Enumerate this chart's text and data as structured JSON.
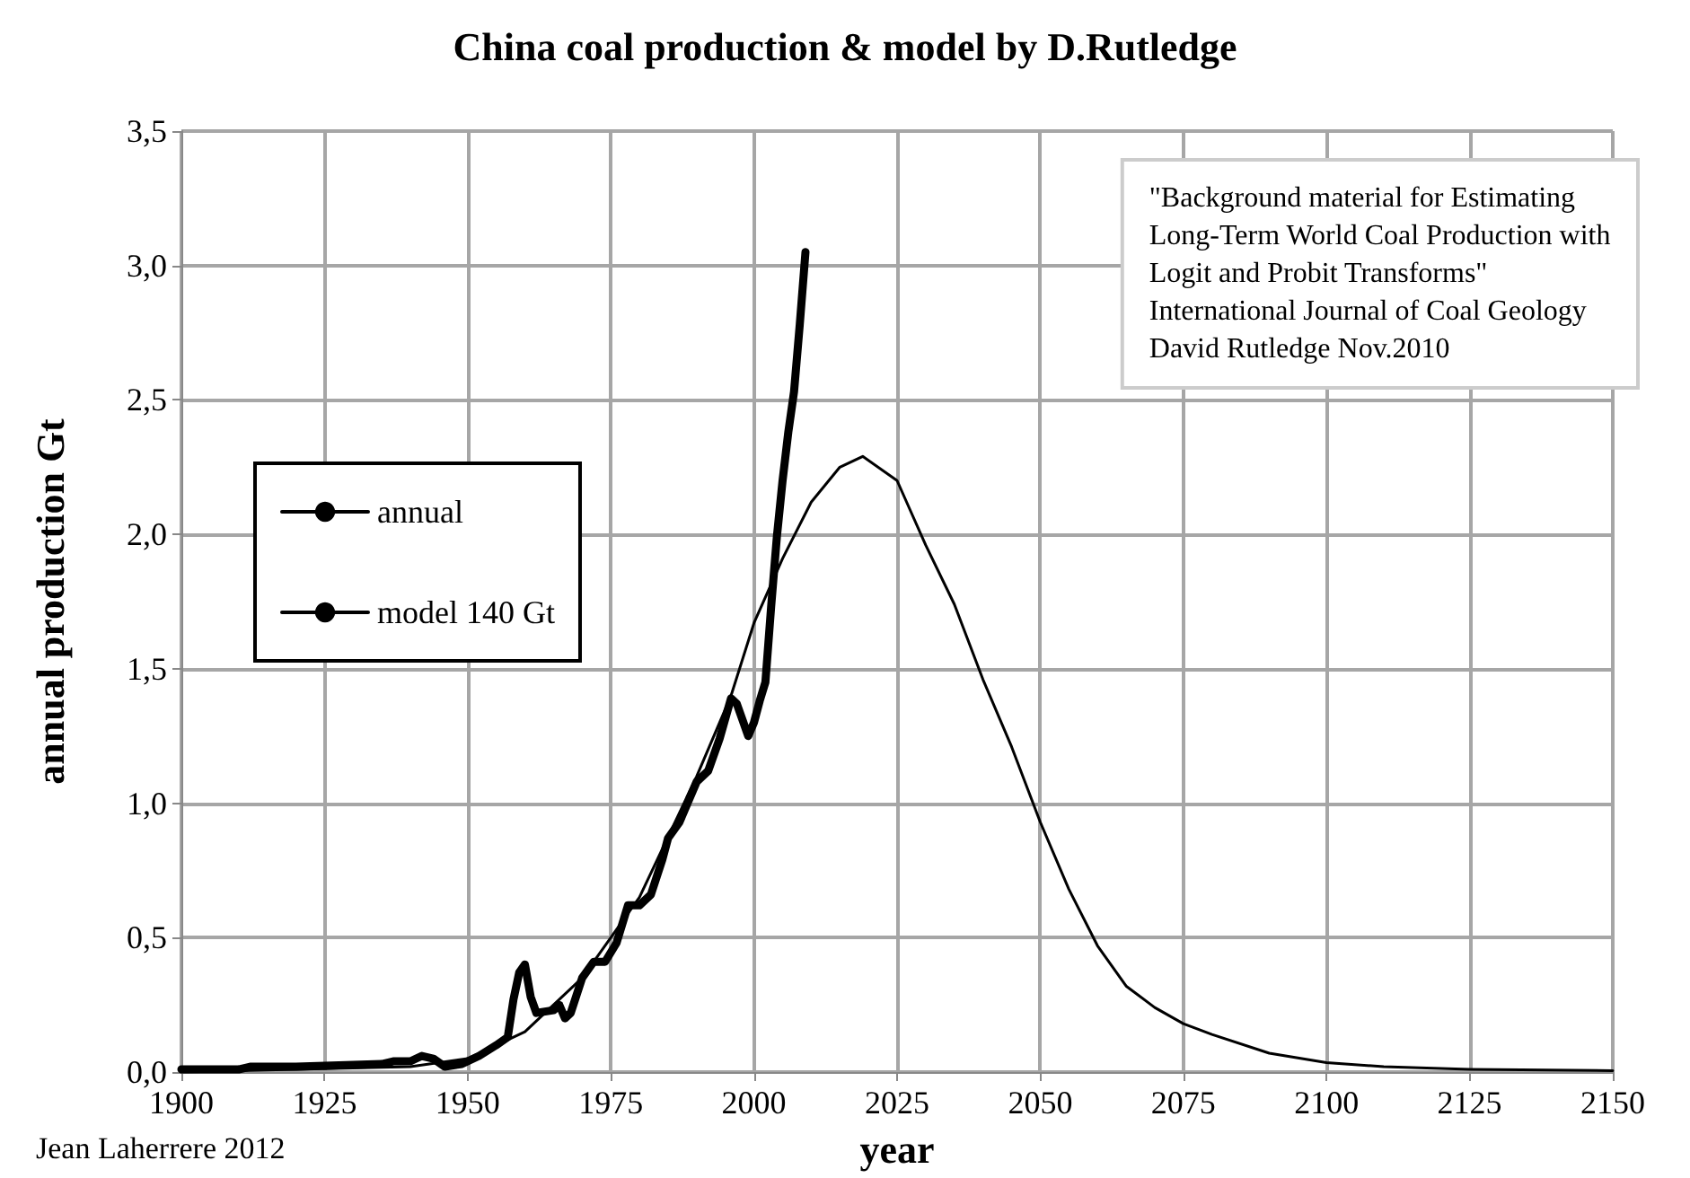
{
  "chart_data": {
    "type": "line",
    "title": "China coal production & model by D.Rutledge",
    "xlabel": "year",
    "ylabel": "annual production Gt",
    "xlim": [
      1900,
      2150
    ],
    "xticks": [
      1900,
      1925,
      1950,
      1975,
      2000,
      2025,
      2050,
      2075,
      2100,
      2125,
      2150
    ],
    "ylim": [
      0,
      3.5
    ],
    "yticks": [
      {
        "value": 0,
        "label": "0,0"
      },
      {
        "value": 0.5,
        "label": "0,5"
      },
      {
        "value": 1,
        "label": "1,0"
      },
      {
        "value": 1.5,
        "label": "1,5"
      },
      {
        "value": 2,
        "label": "2,0"
      },
      {
        "value": 2.5,
        "label": "2,5"
      },
      {
        "value": 3,
        "label": "3,0"
      },
      {
        "value": 3.5,
        "label": "3,5"
      }
    ],
    "grid": true,
    "legend": "left",
    "marker": "none",
    "line_style": "solid",
    "annotations": [
      "\"Background material for Estimating\nLong-Term World Coal Production with\nLogit and Probit Transforms\"\nInternational Journal of Coal Geology\nDavid Rutledge Nov.2010",
      "Jean Laherrere 2012"
    ],
    "series": [
      {
        "name": "annual",
        "color": "#000000",
        "x": [
          1900,
          1910,
          1912,
          1920,
          1935,
          1937,
          1940,
          1942,
          1944,
          1946,
          1949,
          1952,
          1955,
          1957,
          1958,
          1959,
          1960,
          1961,
          1962,
          1965,
          1966,
          1967,
          1968,
          1970,
          1972,
          1974,
          1976,
          1978,
          1980,
          1982,
          1984,
          1985,
          1987,
          1990,
          1992,
          1994,
          1996,
          1997,
          1999,
          2000,
          2001,
          2002,
          2003,
          2004,
          2005,
          2006,
          2007,
          2008,
          2009
        ],
        "values": [
          0.01,
          0.01,
          0.02,
          0.02,
          0.03,
          0.04,
          0.04,
          0.06,
          0.05,
          0.02,
          0.03,
          0.06,
          0.1,
          0.13,
          0.27,
          0.37,
          0.4,
          0.28,
          0.22,
          0.23,
          0.25,
          0.2,
          0.22,
          0.35,
          0.41,
          0.41,
          0.48,
          0.62,
          0.62,
          0.66,
          0.79,
          0.87,
          0.93,
          1.08,
          1.12,
          1.24,
          1.39,
          1.37,
          1.25,
          1.3,
          1.38,
          1.45,
          1.73,
          1.99,
          2.2,
          2.38,
          2.53,
          2.78,
          3.05
        ]
      },
      {
        "name": "model 140 Gt",
        "color": "#000000",
        "x": [
          1900,
          1940,
          1950,
          1960,
          1970,
          1980,
          1990,
          1996,
          2000,
          2005,
          2010,
          2015,
          2019,
          2025,
          2030,
          2035,
          2040,
          2045,
          2050,
          2055,
          2060,
          2065,
          2070,
          2075,
          2080,
          2090,
          2100,
          2110,
          2125,
          2150
        ],
        "values": [
          0,
          0.02,
          0.05,
          0.15,
          0.35,
          0.65,
          1.1,
          1.4,
          1.67,
          1.91,
          2.12,
          2.25,
          2.29,
          2.2,
          1.96,
          1.74,
          1.46,
          1.21,
          0.93,
          0.68,
          0.47,
          0.32,
          0.24,
          0.18,
          0.14,
          0.07,
          0.035,
          0.02,
          0.01,
          0.005
        ]
      }
    ]
  }
}
